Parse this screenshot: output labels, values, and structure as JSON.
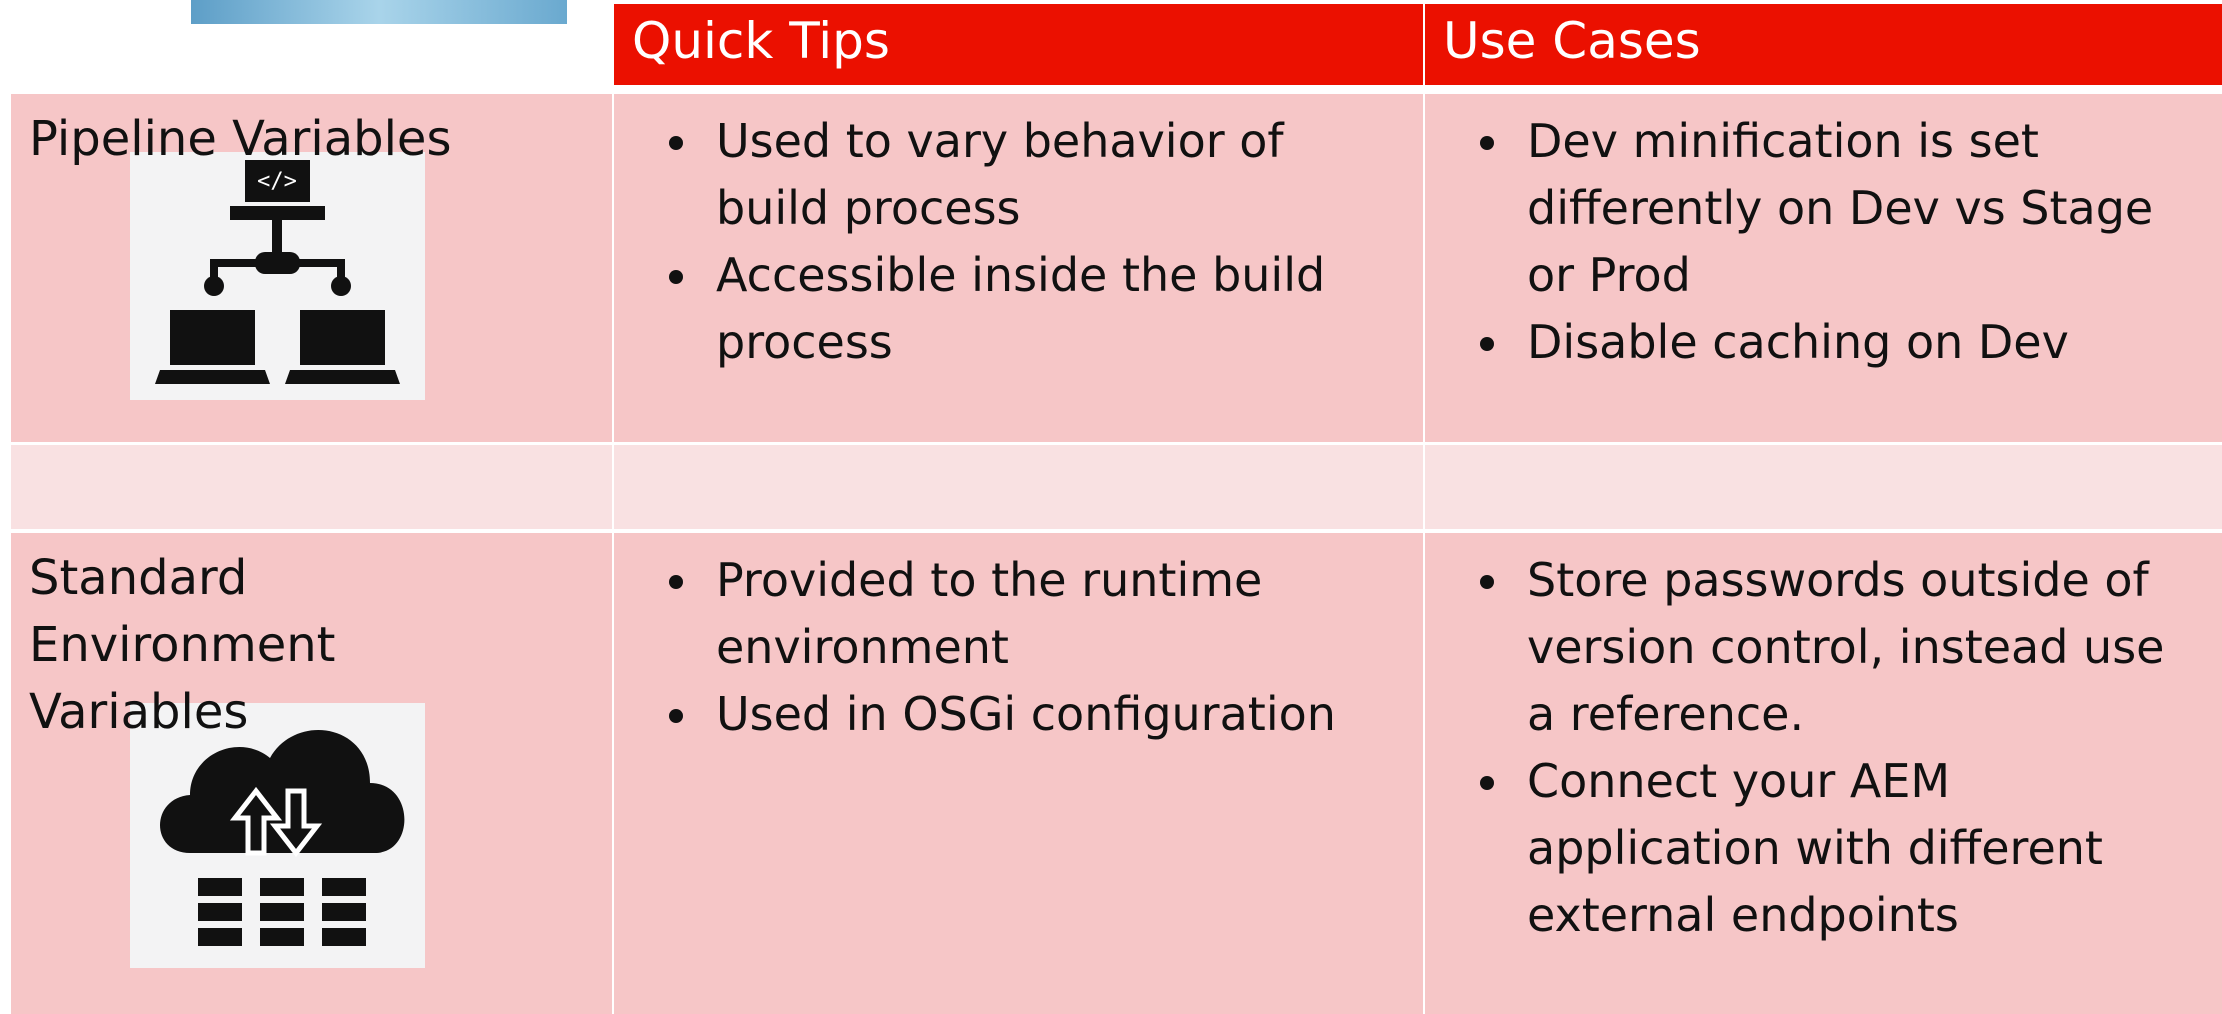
{
  "header": {
    "columns": [
      "Quick Tips",
      "Use Cases"
    ]
  },
  "rows": [
    {
      "title": "Pipeline Variables",
      "tips": [
        "Used to vary behavior of build process",
        "Accessible inside the build process"
      ],
      "use_cases": [
        "Dev minification is set differently on Dev vs Stage or Prod",
        "Disable caching on Dev"
      ]
    },
    {
      "title": "Standard Environment Variables",
      "tips": [
        "Provided to the runtime environment",
        "Used in OSGi configuration"
      ],
      "use_cases": [
        "Store passwords outside of version control, instead use a reference.",
        "Connect your AEM application with different external endpoints"
      ]
    }
  ]
}
